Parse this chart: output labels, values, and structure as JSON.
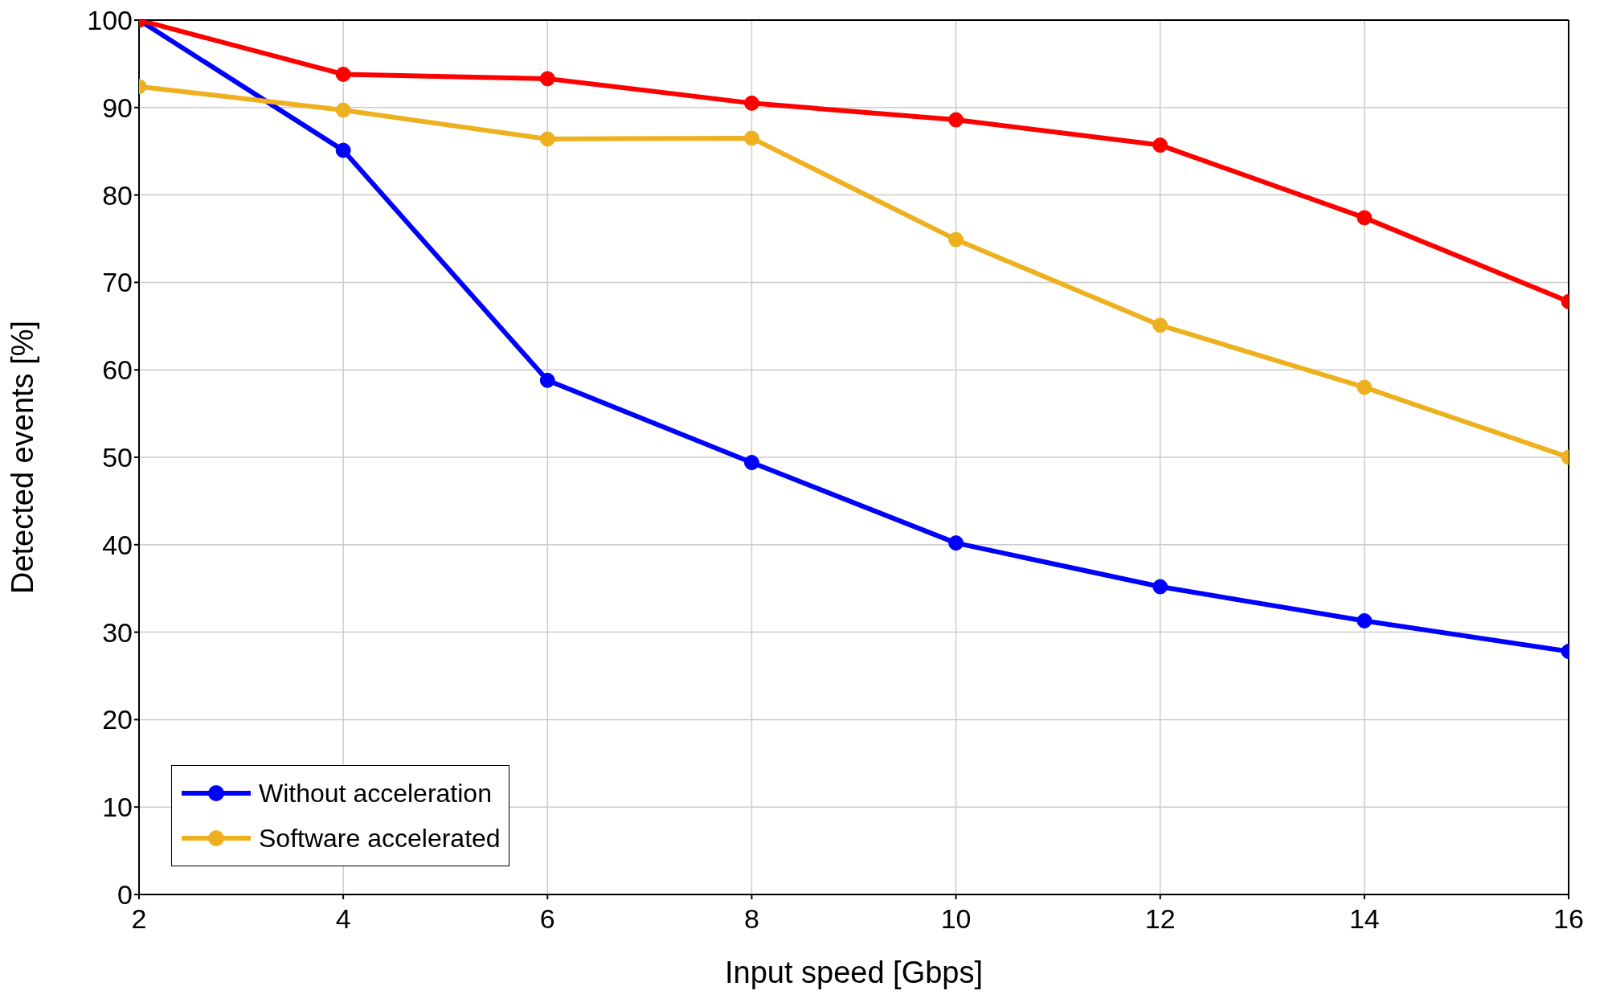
{
  "chart_data": {
    "type": "line",
    "xlabel": "Input speed [Gbps]",
    "ylabel": "Detected events [%]",
    "x": [
      2,
      4,
      6,
      8,
      10,
      12,
      14,
      16
    ],
    "series": [
      {
        "name": "Without acceleration",
        "color": "#0000ff",
        "values": [
          100,
          85.1,
          58.8,
          49.4,
          40.2,
          35.2,
          31.3,
          27.8
        ]
      },
      {
        "name": "Software accelerated",
        "color": "#edb120",
        "values": [
          92.4,
          89.7,
          86.4,
          86.5,
          74.9,
          65.1,
          58.0,
          50.0
        ]
      },
      {
        "color": "#ff0000",
        "values": [
          100,
          93.8,
          93.3,
          90.5,
          88.6,
          85.7,
          77.4,
          67.8
        ]
      }
    ],
    "xlim": [
      2,
      16
    ],
    "xticks": [
      2,
      4,
      6,
      8,
      10,
      12,
      14,
      16
    ],
    "ylim": [
      0,
      100
    ],
    "yticks": [
      0,
      10,
      20,
      30,
      40,
      50,
      60,
      70,
      80,
      90,
      100
    ],
    "grid": true,
    "legend": "bottom left",
    "marker": "circle",
    "line_style": "solid"
  }
}
